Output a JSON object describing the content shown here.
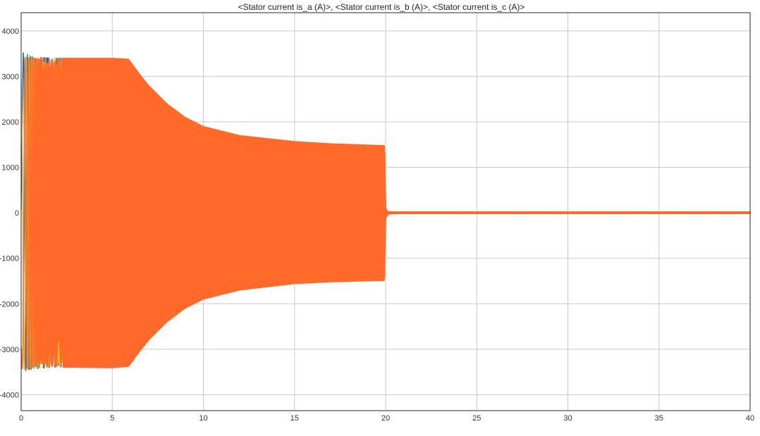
{
  "chart_data": {
    "type": "line",
    "title": "<Stator current is_a (A)>, <Stator current is_b (A)>, <Stator current is_c (A)>",
    "xlabel": "",
    "ylabel": "",
    "xlim": [
      0,
      40
    ],
    "ylim": [
      -4350,
      4400
    ],
    "x_ticks": [
      0,
      5,
      10,
      15,
      20,
      25,
      30,
      35,
      40
    ],
    "y_ticks": [
      -4000,
      -3000,
      -2000,
      -1000,
      0,
      1000,
      2000,
      3000,
      4000
    ],
    "grid": true,
    "legend": "none",
    "series": [
      {
        "color": "#0072bd",
        "envelope": {
          "t": [
            0,
            0.15,
            0.5,
            1,
            2,
            3,
            5,
            5.9,
            6.5,
            7,
            8,
            9,
            10,
            12,
            15,
            17,
            19.95,
            20.0,
            20.05,
            20.2,
            20.5,
            21,
            25,
            30,
            40
          ],
          "upper": [
            3400,
            3550,
            3450,
            3420,
            3400,
            3400,
            3400,
            3380,
            3050,
            2800,
            2400,
            2100,
            1900,
            1700,
            1570,
            1520,
            1480,
            150,
            30,
            25,
            20,
            20,
            20,
            20,
            20
          ],
          "lower": [
            -3300,
            -3480,
            -3450,
            -3420,
            -3400,
            -3400,
            -3410,
            -3380,
            -3050,
            -2800,
            -2400,
            -2100,
            -1900,
            -1700,
            -1560,
            -1520,
            -1490,
            -150,
            -60,
            -30,
            -20,
            -20,
            -20,
            -20,
            -20
          ]
        }
      },
      {
        "color": "#edb120",
        "envelope": {
          "t": [
            0,
            0.15,
            0.5,
            1,
            2,
            3,
            5,
            5.9,
            6.5,
            7,
            8,
            9,
            10,
            12,
            15,
            17,
            19.95,
            20.0,
            20.05,
            20.2,
            20.5,
            21,
            25,
            30,
            40
          ],
          "upper": [
            3400,
            3430,
            3420,
            3410,
            3400,
            3400,
            3400,
            3380,
            3050,
            2800,
            2400,
            2100,
            1900,
            1700,
            1570,
            1520,
            1480,
            150,
            30,
            25,
            20,
            20,
            20,
            20,
            20
          ],
          "lower": [
            -3480,
            -3450,
            -3440,
            -3420,
            -3400,
            -3400,
            -3410,
            -3380,
            -3050,
            -2800,
            -2400,
            -2100,
            -1900,
            -1700,
            -1560,
            -1520,
            -1490,
            -150,
            -60,
            -30,
            -20,
            -20,
            -20,
            -20,
            -20
          ]
        }
      },
      {
        "color": "#ff6929",
        "envelope": {
          "t": [
            0,
            0.15,
            0.5,
            1,
            2,
            3,
            5,
            5.9,
            6.5,
            7,
            8,
            9,
            10,
            12,
            15,
            17,
            19.95,
            20.0,
            20.05,
            20.2,
            20.5,
            21,
            25,
            30,
            40
          ],
          "upper": [
            3380,
            3420,
            3420,
            3410,
            3400,
            3400,
            3400,
            3380,
            3050,
            2800,
            2400,
            2100,
            1900,
            1700,
            1570,
            1520,
            1480,
            150,
            30,
            25,
            20,
            20,
            20,
            20,
            20
          ],
          "lower": [
            -3420,
            -3440,
            -3440,
            -3420,
            -3400,
            -3400,
            -3410,
            -3380,
            -3050,
            -2800,
            -2400,
            -2100,
            -1900,
            -1700,
            -1560,
            -1520,
            -1490,
            -150,
            -60,
            -30,
            -20,
            -20,
            -20,
            -20,
            -20
          ]
        }
      }
    ]
  }
}
